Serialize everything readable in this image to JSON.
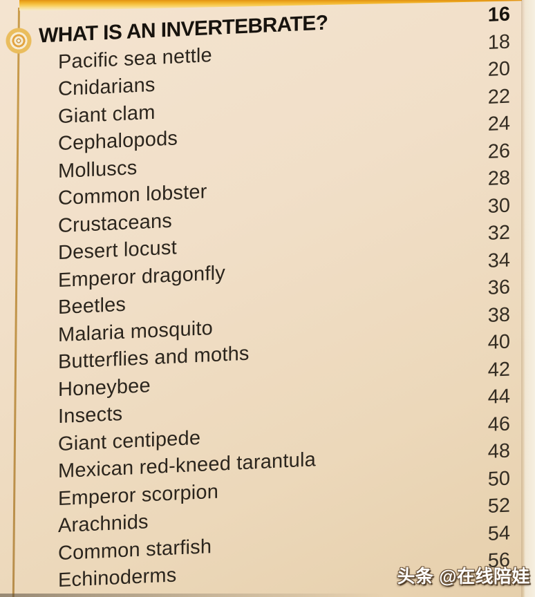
{
  "toc": {
    "title": {
      "label": "WHAT IS AN INVERTEBRATE?",
      "page": "16"
    },
    "entries": [
      {
        "label": "Pacific sea nettle",
        "page": "18"
      },
      {
        "label": "Cnidarians",
        "page": "20"
      },
      {
        "label": "Giant clam",
        "page": "22"
      },
      {
        "label": "Cephalopods",
        "page": "24"
      },
      {
        "label": "Molluscs",
        "page": "26"
      },
      {
        "label": "Common lobster",
        "page": "28"
      },
      {
        "label": "Crustaceans",
        "page": "30"
      },
      {
        "label": "Desert locust",
        "page": "32"
      },
      {
        "label": "Emperor dragonfly",
        "page": "34"
      },
      {
        "label": "Beetles",
        "page": "36"
      },
      {
        "label": "Malaria mosquito",
        "page": "38"
      },
      {
        "label": "Butterflies and moths",
        "page": "40"
      },
      {
        "label": "Honeybee",
        "page": "42"
      },
      {
        "label": "Insects",
        "page": "44"
      },
      {
        "label": "Giant centipede",
        "page": "46"
      },
      {
        "label": "Mexican red-kneed tarantula",
        "page": "48"
      },
      {
        "label": "Emperor scorpion",
        "page": "50"
      },
      {
        "label": "Arachnids",
        "page": "52"
      },
      {
        "label": "Common starfish",
        "page": "54"
      },
      {
        "label": "Echinoderms",
        "page": "56"
      }
    ]
  },
  "watermark": {
    "text": "头条 @在线陪娃"
  },
  "icon": {
    "name": "bullseye-icon"
  },
  "colors": {
    "paper": "#f0dec6",
    "band_orange": "#e09114",
    "band_gold": "#f7c94f",
    "rule_line": "#c49a4f",
    "text": "#2b251d",
    "title_text": "#17130e",
    "watermark_text": "#ffffff"
  }
}
